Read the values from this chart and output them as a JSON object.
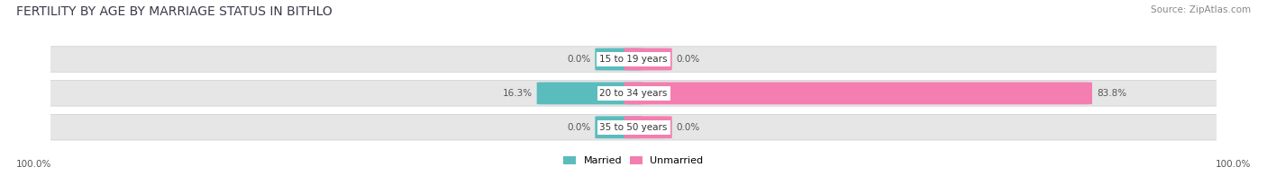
{
  "title": "FERTILITY BY AGE BY MARRIAGE STATUS IN BITHLO",
  "source": "Source: ZipAtlas.com",
  "categories": [
    "15 to 19 years",
    "20 to 34 years",
    "35 to 50 years"
  ],
  "married_values": [
    0.0,
    16.3,
    0.0
  ],
  "unmarried_values": [
    0.0,
    83.8,
    0.0
  ],
  "married_color": "#5bbcbe",
  "unmarried_color": "#f47eb0",
  "bar_bg_color": "#e6e6e6",
  "min_stub": 0.025,
  "x_left_label": "100.0%",
  "x_right_label": "100.0%",
  "title_fontsize": 10,
  "source_fontsize": 7.5,
  "value_fontsize": 7.5,
  "cat_fontsize": 7.5,
  "legend_fontsize": 8
}
